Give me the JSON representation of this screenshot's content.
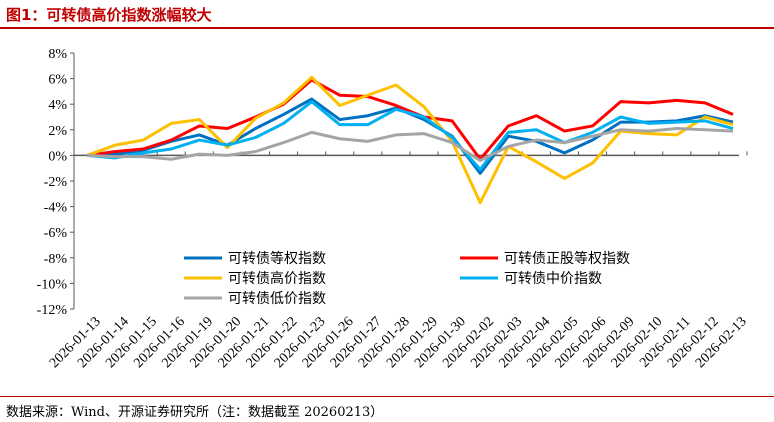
{
  "title": "图1：可转债高价指数涨幅较大",
  "source": "数据来源：Wind、开源证券研究所（注：数据截至 20260213）",
  "chart_data": {
    "type": "line",
    "ylim": [
      -12,
      8
    ],
    "yticks": [
      "8%",
      "6%",
      "4%",
      "2%",
      "0%",
      "-2%",
      "-4%",
      "-6%",
      "-8%",
      "-10%",
      "-12%"
    ],
    "categories": [
      "2026-01-13",
      "2026-01-14",
      "2026-01-15",
      "2026-01-16",
      "2026-01-19",
      "2026-01-20",
      "2026-01-21",
      "2026-01-22",
      "2026-01-23",
      "2026-01-26",
      "2026-01-27",
      "2026-01-28",
      "2026-01-29",
      "2026-01-30",
      "2026-02-02",
      "2026-02-03",
      "2026-02-04",
      "2026-02-05",
      "2026-02-06",
      "2026-02-09",
      "2026-02-10",
      "2026-02-11",
      "2026-02-12",
      "2026-02-13"
    ],
    "legend": "bottom-inside",
    "series": [
      {
        "name": "可转债等权指数",
        "color": "#0070c0",
        "values": [
          0,
          0.1,
          0.4,
          1.1,
          1.6,
          0.8,
          2.1,
          3.2,
          4.4,
          2.8,
          3.1,
          3.7,
          2.8,
          1.5,
          -1.4,
          1.5,
          1.1,
          0.2,
          1.2,
          2.6,
          2.6,
          2.7,
          3.1,
          2.6
        ]
      },
      {
        "name": "可转债正股等权指数",
        "color": "#ff0000",
        "values": [
          0,
          0.3,
          0.5,
          1.2,
          2.3,
          2.1,
          3.0,
          4.0,
          5.9,
          4.7,
          4.6,
          3.9,
          3.0,
          2.7,
          -0.3,
          2.3,
          3.1,
          1.9,
          2.3,
          4.2,
          4.1,
          4.3,
          4.1,
          3.2
        ]
      },
      {
        "name": "可转债高价指数",
        "color": "#ffc000",
        "values": [
          0,
          0.8,
          1.2,
          2.5,
          2.8,
          0.6,
          2.9,
          4.1,
          6.1,
          3.9,
          4.7,
          5.5,
          3.8,
          1.1,
          -3.7,
          0.7,
          -0.5,
          -1.8,
          -0.6,
          1.9,
          1.7,
          1.6,
          3.0,
          2.4
        ]
      },
      {
        "name": "可转债中价指数",
        "color": "#00b0f0",
        "values": [
          0,
          -0.2,
          0.2,
          0.5,
          1.2,
          0.8,
          1.4,
          2.5,
          4.2,
          2.4,
          2.4,
          3.6,
          3.0,
          1.4,
          -1.1,
          1.8,
          2.0,
          1.0,
          1.8,
          3.0,
          2.5,
          2.6,
          2.7,
          2.1
        ]
      },
      {
        "name": "可转债低价指数",
        "color": "#a5a5a5",
        "values": [
          0,
          -0.1,
          -0.1,
          -0.3,
          0.1,
          0.0,
          0.3,
          1.0,
          1.8,
          1.3,
          1.1,
          1.6,
          1.7,
          1.0,
          -0.4,
          0.7,
          1.2,
          1.0,
          1.5,
          2.0,
          1.9,
          2.1,
          2.0,
          1.9
        ]
      }
    ]
  }
}
